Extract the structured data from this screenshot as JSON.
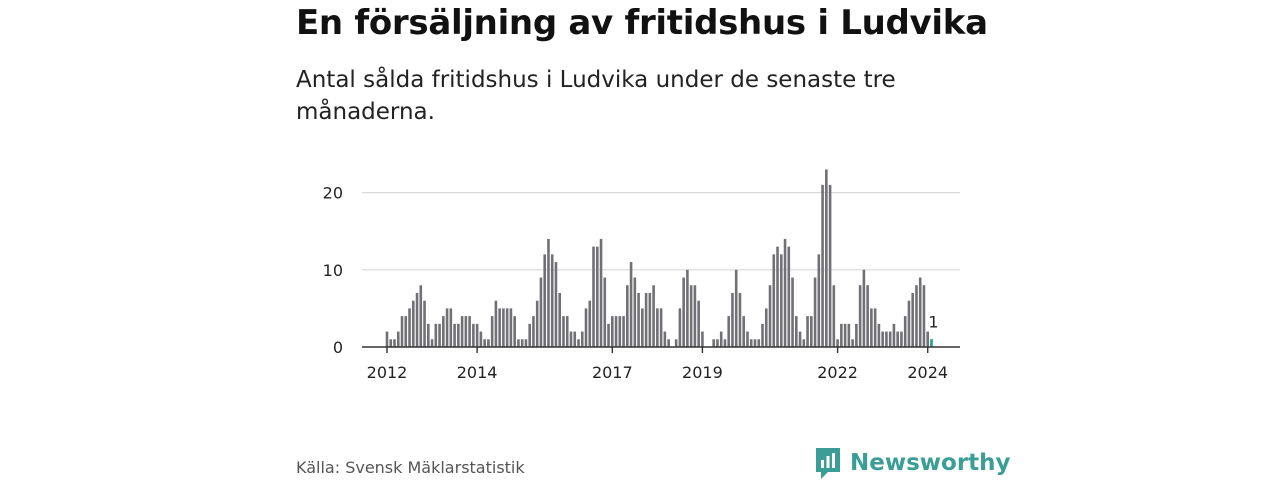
{
  "title": "En försäljning av fritidshus i Ludvika",
  "subtitle": "Antal sålda fritidshus i Ludvika under de senaste tre månaderna.",
  "source": "Källa: Svensk Mäklarstatistik",
  "brand": {
    "name": "Newsworthy",
    "icon": "newsworthy-logo-icon",
    "color": "#3a9e96"
  },
  "chart_data": {
    "type": "bar",
    "bar_color": "#707075",
    "highlight_color": "#2ba8a0",
    "grid": true,
    "ylim": [
      0,
      23
    ],
    "yticks": [
      0,
      10,
      20
    ],
    "xticks": [
      {
        "label": "2012",
        "index": 0
      },
      {
        "label": "2014",
        "index": 24
      },
      {
        "label": "2017",
        "index": 60
      },
      {
        "label": "2019",
        "index": 84
      },
      {
        "label": "2022",
        "index": 120
      },
      {
        "label": "2024",
        "index": 144
      }
    ],
    "start_label": "2012-01",
    "values": [
      2,
      1,
      1,
      2,
      4,
      4,
      5,
      6,
      7,
      8,
      6,
      3,
      1,
      3,
      3,
      4,
      5,
      5,
      3,
      3,
      4,
      4,
      4,
      3,
      3,
      2,
      1,
      1,
      4,
      6,
      5,
      5,
      5,
      5,
      4,
      1,
      1,
      1,
      3,
      4,
      6,
      9,
      12,
      14,
      12,
      11,
      7,
      4,
      4,
      2,
      2,
      1,
      2,
      5,
      6,
      13,
      13,
      14,
      9,
      3,
      4,
      4,
      4,
      4,
      8,
      11,
      9,
      7,
      5,
      7,
      7,
      8,
      5,
      5,
      2,
      1,
      0,
      1,
      5,
      9,
      10,
      8,
      8,
      6,
      2,
      0,
      0,
      1,
      1,
      2,
      1,
      4,
      7,
      10,
      7,
      4,
      2,
      1,
      1,
      1,
      3,
      5,
      8,
      12,
      13,
      12,
      14,
      13,
      9,
      4,
      2,
      1,
      4,
      4,
      9,
      12,
      21,
      23,
      21,
      8,
      1,
      3,
      3,
      3,
      1,
      3,
      8,
      10,
      8,
      5,
      5,
      3,
      2,
      2,
      2,
      3,
      2,
      2,
      4,
      6,
      7,
      8,
      9,
      8,
      2,
      1
    ],
    "highlight_index": 145,
    "highlight_label": "1"
  }
}
